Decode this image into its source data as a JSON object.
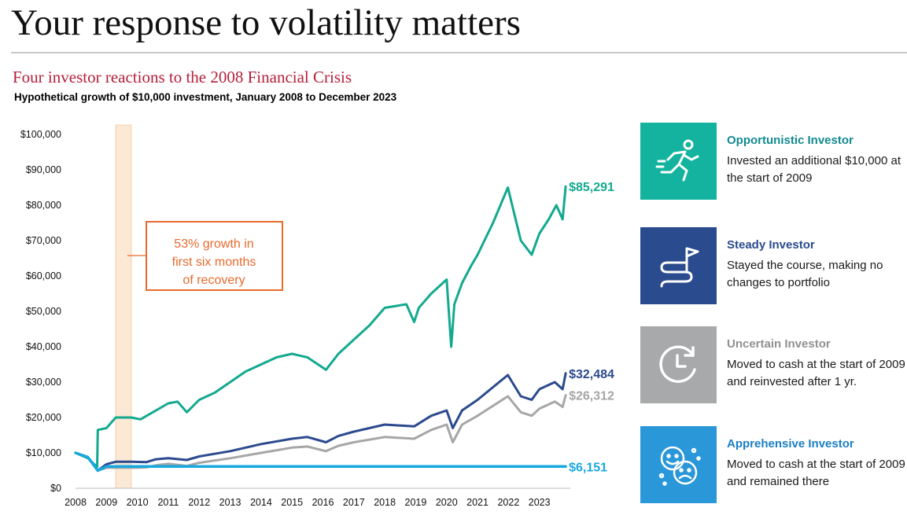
{
  "header": {
    "title": "Your response to volatility matters",
    "subtitle": "Four investor reactions to the 2008 Financial Crisis",
    "subsubtitle": "Hypothetical growth of $10,000 investment, January 2008 to December 2023"
  },
  "chart_data": {
    "type": "line",
    "x_range": [
      2008,
      2024
    ],
    "ylim": [
      0,
      100000
    ],
    "y_ticks": [
      "$0",
      "$10,000",
      "$20,000",
      "$30,000",
      "$40,000",
      "$50,000",
      "$60,000",
      "$70,000",
      "$80,000",
      "$90,000",
      "$100,000"
    ],
    "y_tick_values": [
      0,
      10000,
      20000,
      30000,
      40000,
      50000,
      60000,
      70000,
      80000,
      90000,
      100000
    ],
    "x_ticks": [
      "2008",
      "2009",
      "2010",
      "2011",
      "2012",
      "2013",
      "2014",
      "2015",
      "2016",
      "2017",
      "2018",
      "2019",
      "2020",
      "2021",
      "2022",
      "2023"
    ],
    "x_tick_values": [
      2008,
      2009,
      2010,
      2011,
      2012,
      2013,
      2014,
      2015,
      2016,
      2017,
      2018,
      2019,
      2020,
      2021,
      2022,
      2023
    ],
    "highlight_band": {
      "x": [
        2009.3,
        2009.8
      ]
    },
    "annotation": "53% growth in\nfirst six months\nof recovery",
    "series": [
      {
        "name": "Opportunistic Investor",
        "color": "#13a98f",
        "end_label": "$85,291",
        "x": [
          2008,
          2008.4,
          2008.7,
          2008.72,
          2009,
          2009.3,
          2009.8,
          2010.1,
          2010.5,
          2011,
          2011.3,
          2011.6,
          2012,
          2012.5,
          2013,
          2013.5,
          2014,
          2014.5,
          2015,
          2015.5,
          2016.1,
          2016.5,
          2017,
          2017.5,
          2018,
          2018.7,
          2018.95,
          2019.1,
          2019.5,
          2020.0,
          2020.15,
          2020.25,
          2020.5,
          2020.8,
          2021,
          2021.5,
          2021.98,
          2022.4,
          2022.75,
          2023,
          2023.3,
          2023.55,
          2023.75,
          2023.85
        ],
        "values": [
          10000,
          8500,
          6000,
          16500,
          17000,
          20000,
          20000,
          19500,
          21500,
          24000,
          24500,
          21500,
          25000,
          27000,
          30000,
          33000,
          35000,
          37000,
          38000,
          37000,
          33500,
          38000,
          42000,
          46000,
          51000,
          52000,
          47000,
          51000,
          55000,
          59000,
          40000,
          52000,
          58000,
          63000,
          66000,
          75000,
          85000,
          70000,
          66000,
          72000,
          76000,
          80000,
          76000,
          85291
        ]
      },
      {
        "name": "Steady Investor",
        "color": "#2b4a8e",
        "end_label": "$32,484",
        "x": [
          2008,
          2008.4,
          2008.72,
          2009,
          2009.3,
          2009.8,
          2010.3,
          2010.6,
          2011,
          2011.6,
          2012,
          2013,
          2014,
          2015,
          2015.5,
          2016.1,
          2016.5,
          2017,
          2018,
          2018.95,
          2019.5,
          2020.0,
          2020.2,
          2020.5,
          2021,
          2021.98,
          2022.4,
          2022.75,
          2023,
          2023.5,
          2023.75,
          2023.85
        ],
        "values": [
          10000,
          8800,
          5000,
          6800,
          7500,
          7500,
          7400,
          8200,
          8500,
          8000,
          9000,
          10500,
          12500,
          14000,
          14500,
          13000,
          14800,
          16000,
          18000,
          17500,
          20500,
          22000,
          17000,
          22000,
          25000,
          32000,
          26000,
          25000,
          28000,
          30000,
          28000,
          32484
        ]
      },
      {
        "name": "Uncertain Investor",
        "color": "#a6a6a6",
        "end_label": "$26,312",
        "x": [
          2008,
          2008.4,
          2008.72,
          2009,
          2010,
          2010.3,
          2010.6,
          2011,
          2011.6,
          2012,
          2013,
          2014,
          2015,
          2015.5,
          2016.1,
          2016.5,
          2017,
          2018,
          2018.95,
          2019.5,
          2020.0,
          2020.2,
          2020.5,
          2021,
          2021.98,
          2022.4,
          2022.75,
          2023,
          2023.5,
          2023.75,
          2023.85
        ],
        "values": [
          10000,
          8800,
          5000,
          5800,
          5800,
          5900,
          6500,
          6900,
          6300,
          7200,
          8500,
          10000,
          11500,
          11800,
          10500,
          12000,
          13000,
          14500,
          14000,
          16500,
          18000,
          13000,
          18000,
          20500,
          26000,
          21500,
          20500,
          22500,
          24500,
          23000,
          26312
        ]
      },
      {
        "name": "Apprehensive Investor",
        "color": "#18a8e0",
        "end_label": "$6,151",
        "x": [
          2008,
          2008.4,
          2008.72,
          2009,
          2010,
          2012,
          2016,
          2020,
          2023.85
        ],
        "values": [
          10000,
          8800,
          5000,
          6151,
          6151,
          6151,
          6151,
          6151,
          6151
        ]
      }
    ]
  },
  "legend": [
    {
      "name": "Opportunistic Investor",
      "desc": "Invested an additional $10,000 at the start of 2009",
      "tile_color": "#13b39f",
      "name_color": "#138a90",
      "icon": "runner-icon"
    },
    {
      "name": "Steady Investor",
      "desc": "Stayed the course, making no changes to portfolio",
      "tile_color": "#2a4b8d",
      "name_color": "#2a4b8d",
      "icon": "winding-path-flag-icon"
    },
    {
      "name": "Uncertain Investor",
      "desc": "Moved to cash at the start of 2009 and reinvested after 1 yr.",
      "tile_color": "#a8a9ab",
      "name_color": "#909090",
      "icon": "clock-icon"
    },
    {
      "name": "Apprehensive Investor",
      "desc": "Moved to cash at the start of 2009 and remained there",
      "tile_color": "#2a97d8",
      "name_color": "#1a7fc4",
      "icon": "worried-faces-icon"
    }
  ]
}
